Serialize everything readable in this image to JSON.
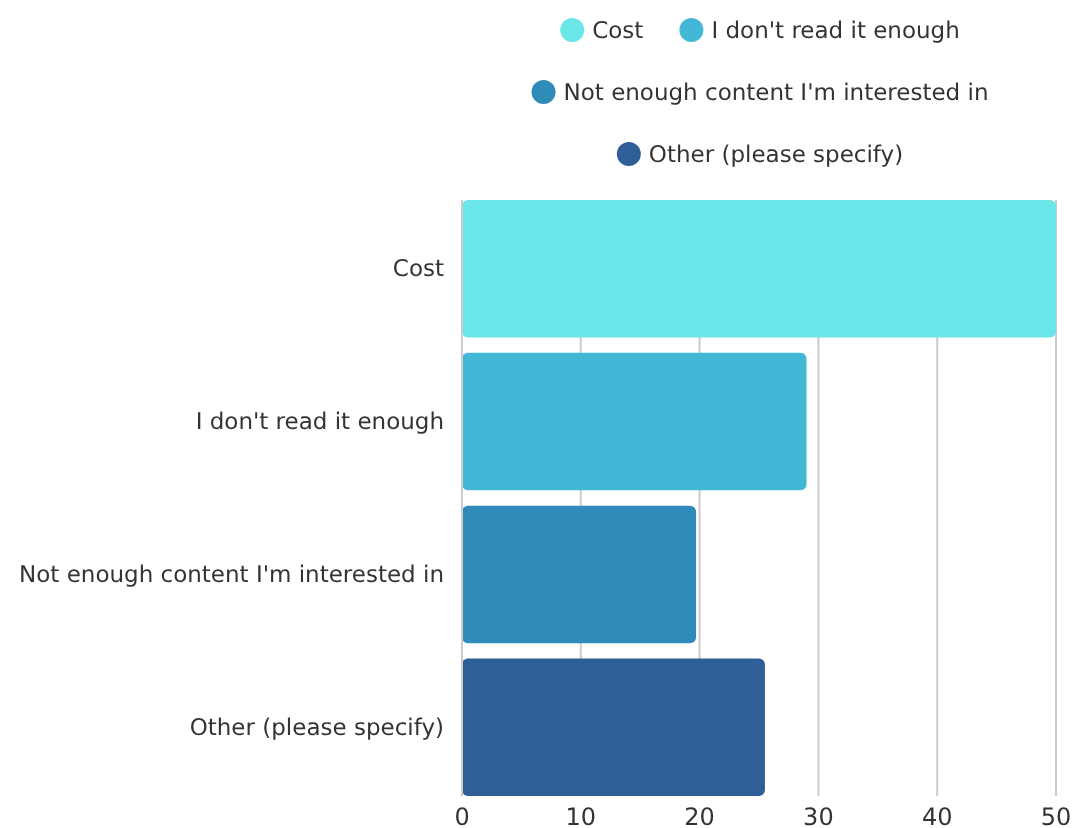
{
  "chart_data": {
    "type": "bar",
    "orientation": "horizontal",
    "stacked": true,
    "categories": [
      "Cost",
      "I don't read it enough",
      "Not enough content I'm interested in",
      "Other (please specify)"
    ],
    "series": [
      {
        "name": "Cost",
        "color": "#6ae5e8",
        "values": [
          50,
          null,
          null,
          null
        ]
      },
      {
        "name": "I don't read it enough",
        "color": "#43b7d6",
        "values": [
          null,
          29,
          null,
          null
        ]
      },
      {
        "name": "Not enough content I'm interested in",
        "color": "#2e8bba",
        "values": [
          null,
          null,
          19.7,
          null
        ]
      },
      {
        "name": "Other (please specify)",
        "color": "#2f5f98",
        "values": [
          null,
          null,
          null,
          25.5
        ]
      }
    ],
    "xlim": [
      0,
      50
    ],
    "xticks": [
      0,
      10,
      20,
      30,
      40,
      50
    ],
    "grid": "x",
    "legend": "top"
  }
}
